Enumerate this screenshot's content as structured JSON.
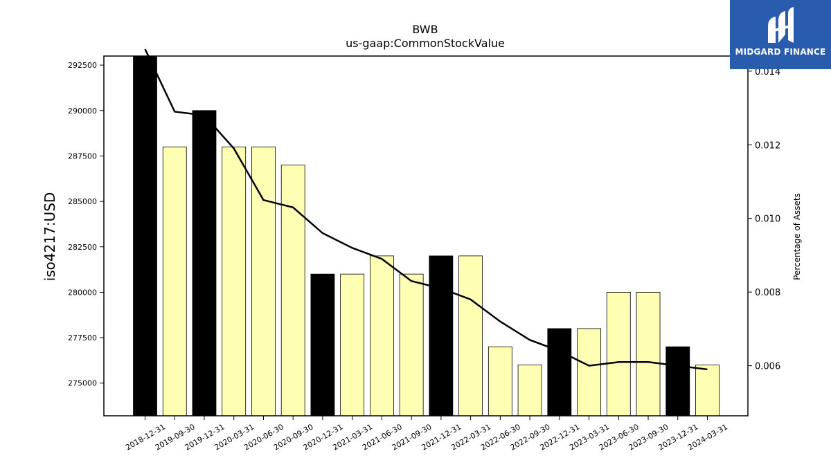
{
  "chart_data": {
    "type": "bar",
    "title": "BWB",
    "subtitle": "us-gaap:CommonStockValue",
    "ylabel": "iso4217:USD",
    "y2label": "Percentage of Assets",
    "categories": [
      "2018-12-31",
      "2019-09-30",
      "2019-12-31",
      "2020-03-31",
      "2020-06-30",
      "2020-09-30",
      "2020-12-31",
      "2021-03-31",
      "2021-06-30",
      "2021-09-30",
      "2021-12-31",
      "2022-03-31",
      "2022-06-30",
      "2022-09-30",
      "2022-12-31",
      "2023-03-31",
      "2023-06-30",
      "2023-09-30",
      "2023-12-31",
      "2024-03-31"
    ],
    "values": [
      293000,
      288000,
      290000,
      288000,
      288000,
      287000,
      281000,
      281000,
      282000,
      281000,
      282000,
      282000,
      277000,
      276000,
      278000,
      278000,
      280000,
      280000,
      277000,
      276000
    ],
    "bar_kind": [
      "annual",
      "quarterly",
      "annual",
      "quarterly",
      "quarterly",
      "quarterly",
      "annual",
      "quarterly",
      "quarterly",
      "quarterly",
      "annual",
      "quarterly",
      "quarterly",
      "quarterly",
      "annual",
      "quarterly",
      "quarterly",
      "quarterly",
      "annual",
      "quarterly"
    ],
    "line_series": {
      "values": [
        0.0148,
        0.0129,
        0.0128,
        0.0119,
        0.0105,
        0.0103,
        0.0096,
        0.0092,
        0.0089,
        0.0083,
        0.0081,
        0.0078,
        0.0072,
        0.0067,
        0.0064,
        0.006,
        0.0061,
        0.0061,
        0.006,
        0.0059
      ]
    },
    "ylim": [
      273200,
      293000
    ],
    "y2lim": [
      0.00464,
      0.01441
    ],
    "yticks": [
      "275000",
      "277500",
      "280000",
      "282500",
      "285000",
      "287500",
      "290000",
      "292500"
    ],
    "y2ticks": [
      "0.006",
      "0.008",
      "0.010",
      "0.012",
      "0.014"
    ],
    "colors": {
      "annual": "#000000",
      "quarterly": "#ffffb3",
      "line": "#000000"
    },
    "grid": false
  },
  "logo": {
    "text": "MIDGARD FINANCE",
    "color": "#2a5cad"
  }
}
